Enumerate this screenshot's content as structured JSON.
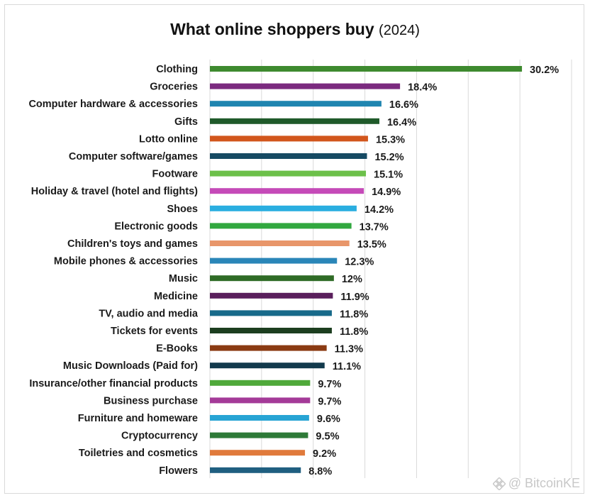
{
  "chart_data": {
    "type": "bar",
    "orientation": "horizontal",
    "title": "What online shoppers buy",
    "subtitle": "(2024)",
    "xlabel": "",
    "ylabel": "",
    "xlim": [
      0,
      35
    ],
    "grid": true,
    "legend": "none",
    "categories": [
      "Clothing",
      "Groceries",
      "Computer hardware & accessories",
      "Gifts",
      "Lotto online",
      "Computer software/games",
      "Footware",
      "Holiday & travel (hotel and flights)",
      "Shoes",
      "Electronic goods",
      "Children's toys and games",
      "Mobile phones & accessories",
      "Music",
      "Medicine",
      "TV, audio and media",
      "Tickets for events",
      "E-Books",
      "Music Downloads (Paid for)",
      "Insurance/other financial products",
      "Business purchase",
      "Furniture and homeware",
      "Cryptocurrency",
      "Toiletries and cosmetics",
      "Flowers"
    ],
    "values": [
      30.2,
      18.4,
      16.6,
      16.4,
      15.3,
      15.2,
      15.1,
      14.9,
      14.2,
      13.7,
      13.5,
      12.3,
      12,
      11.9,
      11.8,
      11.8,
      11.3,
      11.1,
      9.7,
      9.7,
      9.6,
      9.5,
      9.2,
      8.8
    ],
    "labels": [
      "30.2%",
      "18.4%",
      "16.6%",
      "16.4%",
      "15.3%",
      "15.2%",
      "15.1%",
      "14.9%",
      "14.2%",
      "13.7%",
      "13.5%",
      "12.3%",
      "12%",
      "11.9%",
      "11.8%",
      "11.8%",
      "11.3%",
      "11.1%",
      "9.7%",
      "9.7%",
      "9.6%",
      "9.5%",
      "9.2%",
      "8.8%"
    ],
    "colors": [
      "#3e8a2f",
      "#7b2a7f",
      "#1f85b0",
      "#1f5a2a",
      "#d2561c",
      "#164a63",
      "#6cc04a",
      "#c54ab8",
      "#2aaee0",
      "#31a83f",
      "#e8966a",
      "#2a86b8",
      "#2f6b26",
      "#5a1f5c",
      "#176a8a",
      "#1c3e1f",
      "#8a3a12",
      "#123a4c",
      "#4fa93a",
      "#a43a98",
      "#27a4d4",
      "#2e7a38",
      "#e07a3c",
      "#1f5f80"
    ]
  },
  "watermark": "@ BitcoinKE"
}
